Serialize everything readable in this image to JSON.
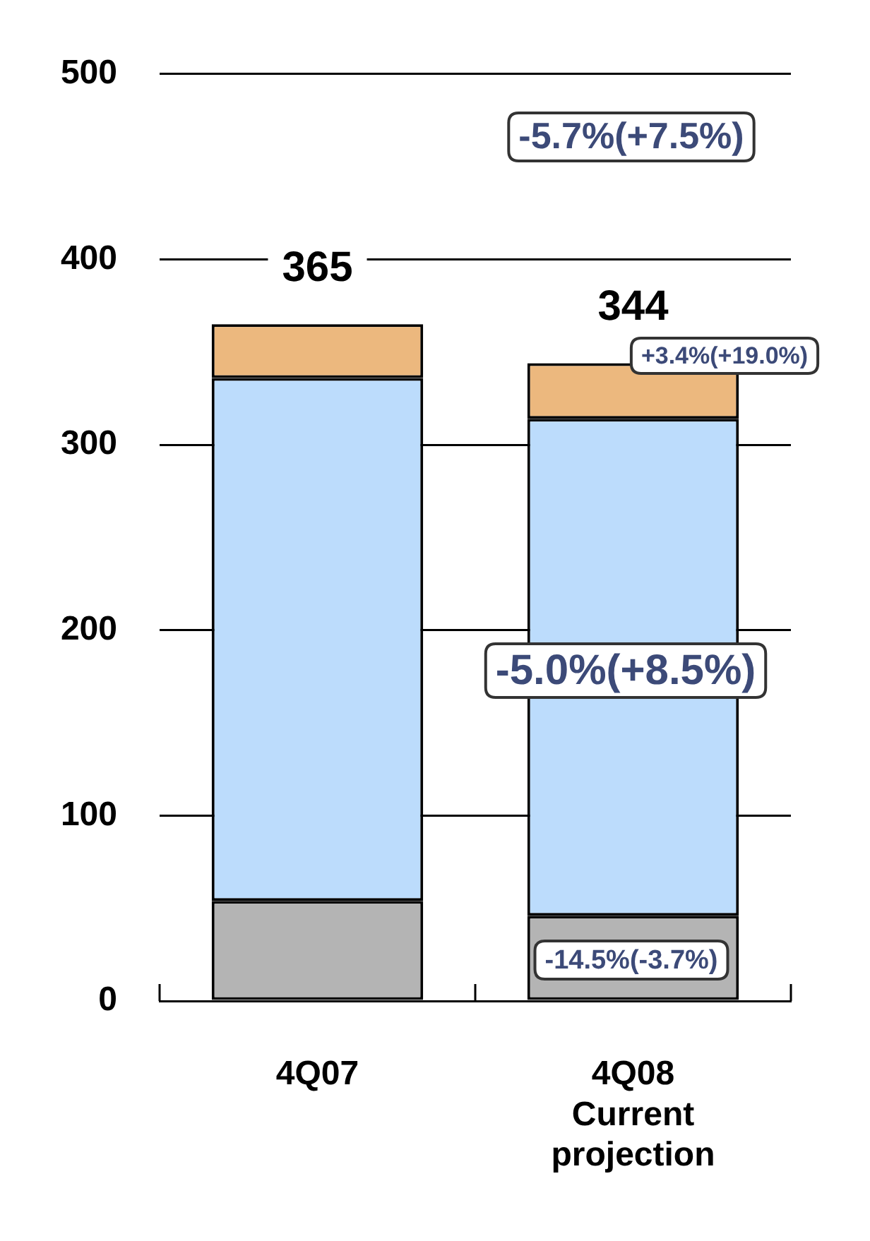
{
  "chart_data": {
    "type": "bar",
    "stacked": true,
    "categories": [
      "4Q07",
      "4Q08 Current projection"
    ],
    "series": [
      {
        "color": "#b4b4b4",
        "values": [
          54,
          46
        ]
      },
      {
        "color": "#bcdcfc",
        "values": [
          282,
          268
        ]
      },
      {
        "color": "#ecb87e",
        "values": [
          29,
          30
        ]
      }
    ],
    "totals": [
      "365",
      "344"
    ],
    "ylim": [
      0,
      500
    ],
    "yticks": [
      0,
      100,
      200,
      300,
      400,
      500
    ],
    "grid": "y",
    "legend": false,
    "annotations": [
      "-5.7%(+7.5%)",
      "+3.4%(+19.0%)",
      "-5.0%(+8.5%)",
      "-14.5%(-3.7%)"
    ]
  }
}
